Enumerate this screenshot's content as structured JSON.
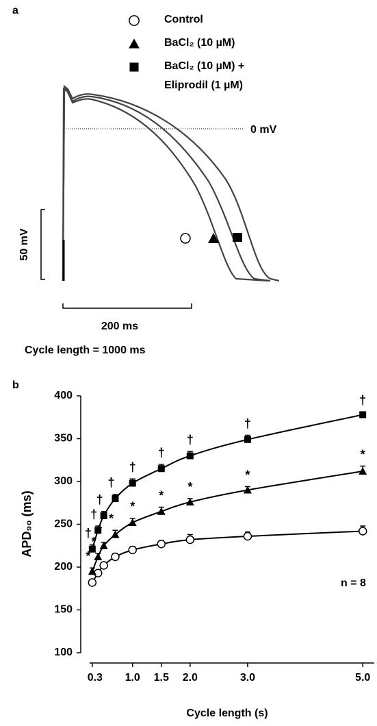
{
  "figure_a": {
    "label": "a",
    "zero_label": "0 mV",
    "voltage_scale": "50 mV",
    "time_scale": "200 ms",
    "caption": "Cycle length = 1000 ms"
  },
  "chart_data": {
    "type": "line",
    "label": "b",
    "xlabel": "Cycle length (s)",
    "ylabel": "APD₉₀ (ms)",
    "annotation": "n = 8",
    "xlim": [
      0.1,
      5.2
    ],
    "ylim": [
      100,
      400
    ],
    "xticks": [
      0.3,
      {
        "value": 1,
        "label": "1.0"
      },
      1.5,
      {
        "value": 2,
        "label": "2.0"
      },
      {
        "value": 3,
        "label": "3.0"
      },
      {
        "value": 5,
        "label": "5.0"
      }
    ],
    "yticks": [
      100,
      150,
      200,
      250,
      300,
      350,
      400
    ],
    "x": [
      0.3,
      0.4,
      0.5,
      0.7,
      1,
      1.5,
      2,
      3,
      5
    ],
    "series": [
      {
        "name": "Control",
        "marker": "circle",
        "color": "#000000",
        "values": [
          182,
          193,
          202,
          212,
          220,
          227,
          232,
          236,
          242
        ],
        "errors": [
          2,
          3,
          3,
          4,
          4,
          4,
          6,
          5,
          6
        ]
      },
      {
        "name": "BaCl₂ (10 µM)",
        "marker": "triangle",
        "color": "#000000",
        "values": [
          195,
          212,
          225,
          238,
          252,
          265,
          276,
          290,
          312
        ],
        "errors": [
          4,
          4,
          4,
          5,
          5,
          5,
          4,
          4,
          6
        ],
        "point_labels": [
          "*",
          "*",
          "*",
          "*",
          "*",
          "*",
          "*",
          "*",
          "*"
        ]
      },
      {
        "name": "BaCl₂ (10 µM) +\nEliprodil (1 µM)",
        "marker": "square",
        "color": "#000000",
        "values": [
          221,
          243,
          260,
          280,
          298,
          315,
          330,
          349,
          378
        ],
        "errors": [
          5,
          5,
          5,
          5,
          5,
          5,
          5,
          5,
          3
        ],
        "point_labels": [
          "†",
          "†",
          "†",
          "†",
          "†",
          "†",
          "†",
          "†",
          "†"
        ]
      }
    ]
  }
}
